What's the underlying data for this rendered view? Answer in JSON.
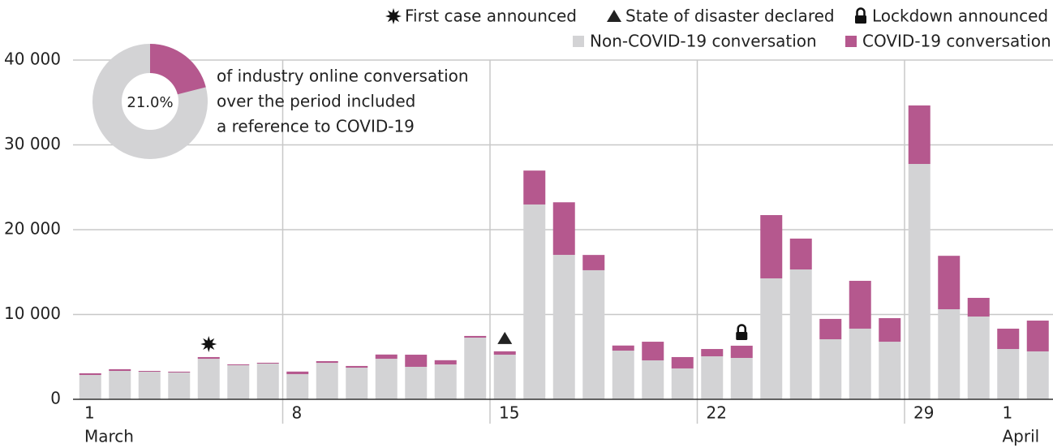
{
  "chart_data": {
    "type": "stacked-bar",
    "categories": [
      "1",
      null,
      null,
      null,
      null,
      null,
      null,
      "8",
      null,
      null,
      null,
      null,
      null,
      null,
      "15",
      null,
      null,
      null,
      null,
      null,
      null,
      "22",
      null,
      null,
      null,
      null,
      null,
      null,
      "29",
      null,
      null,
      "1",
      null
    ],
    "month_labels": [
      "March",
      null,
      null,
      null,
      null,
      null,
      null,
      null,
      null,
      null,
      null,
      null,
      null,
      null,
      null,
      null,
      null,
      null,
      null,
      null,
      null,
      null,
      null,
      null,
      null,
      null,
      null,
      null,
      null,
      null,
      null,
      "April",
      null
    ],
    "series": [
      {
        "name": "Non-COVID-19 conversation",
        "color": "#d3d3d5",
        "values": [
          2870,
          3350,
          3250,
          3160,
          4780,
          4020,
          4210,
          2970,
          4300,
          3730,
          4780,
          3830,
          4110,
          7270,
          5260,
          22970,
          17030,
          15220,
          5740,
          4590,
          3640,
          5070,
          4880,
          14260,
          15310,
          7080,
          8330,
          6790,
          27750,
          10620,
          9760,
          5930,
          5650
        ]
      },
      {
        "name": "COVID-19 conversation",
        "color": "#b5588e",
        "values": [
          200,
          200,
          100,
          100,
          200,
          100,
          100,
          300,
          200,
          200,
          500,
          1430,
          500,
          200,
          400,
          4000,
          6200,
          1800,
          600,
          2200,
          1340,
          860,
          1440,
          7460,
          3640,
          2400,
          5640,
          2780,
          6900,
          6300,
          2200,
          2400,
          3630
        ]
      }
    ],
    "events": [
      {
        "label": "First case announced",
        "symbol": "star",
        "day_index": 4
      },
      {
        "label": "State of disaster declared",
        "symbol": "triangle",
        "day_index": 14
      },
      {
        "label": "Lockdown announced",
        "symbol": "lock",
        "day_index": 22
      }
    ],
    "ylim": [
      0,
      40000
    ],
    "yticks": [
      0,
      {
        "value": 10000,
        "label": "10 000"
      },
      {
        "value": 20000,
        "label": "20 000"
      },
      {
        "value": 30000,
        "label": "30 000"
      },
      {
        "value": 40000,
        "label": "40 000"
      }
    ],
    "grid": true,
    "donut": {
      "value": 21.0,
      "value_label": "21.0%",
      "color": "#b5588e",
      "rest_color": "#d3d3d5",
      "text": [
        "of industry online conversation",
        "over the period included",
        "a reference to COVID-19"
      ]
    }
  }
}
